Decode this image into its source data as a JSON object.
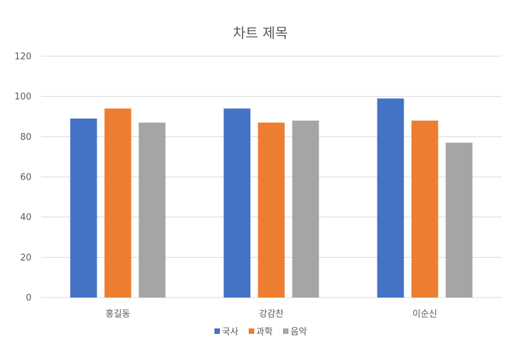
{
  "chart_data": {
    "type": "bar",
    "title": "차트 제목",
    "xlabel": "",
    "ylabel": "",
    "categories": [
      "홍길동",
      "강감찬",
      "이순신"
    ],
    "series": [
      {
        "name": "국사",
        "values": [
          89,
          94,
          99
        ],
        "color": "#4472C4"
      },
      {
        "name": "과학",
        "values": [
          94,
          87,
          88
        ],
        "color": "#ED7D31"
      },
      {
        "name": "음악",
        "values": [
          87,
          88,
          77
        ],
        "color": "#A5A5A5"
      }
    ],
    "ylim": [
      0,
      120
    ],
    "yticks": [
      "0",
      "20",
      "40",
      "60",
      "80",
      "100",
      "120"
    ],
    "grid": true,
    "legend_position": "bottom"
  }
}
